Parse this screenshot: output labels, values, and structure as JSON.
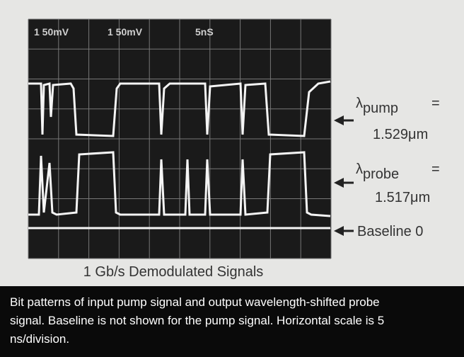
{
  "figure": {
    "scope_readouts": [
      "1 50mV",
      "1 50mV",
      "5nS"
    ],
    "labels": {
      "pump": {
        "symbol": "λ",
        "subscript": "pump",
        "equals": "=",
        "value": "1.529μm"
      },
      "probe": {
        "symbol": "λ",
        "subscript": "probe",
        "equals": "=",
        "value": "1.517μm"
      },
      "baseline": "Baseline 0"
    },
    "title": "1 Gb/s Demodulated Signals",
    "caption": "Bit patterns of input pump signal and output wavelength-shifted probe signal. Baseline is not shown for the pump signal. Horizontal scale is 5 ns/division."
  }
}
